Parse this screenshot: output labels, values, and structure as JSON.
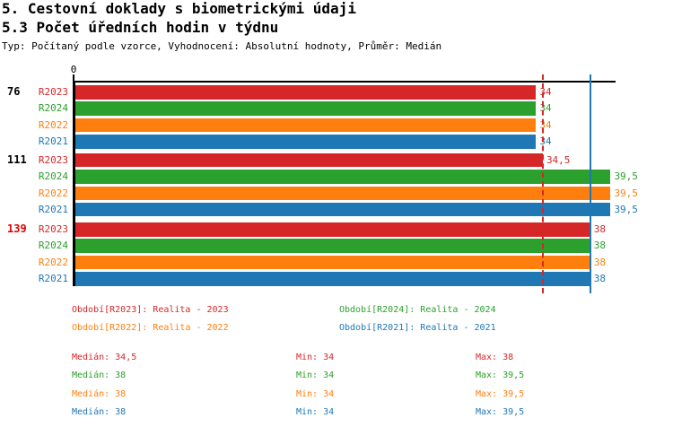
{
  "header": {
    "title": "5. Cestovní doklady s biometrickými údaji",
    "subtitle": "5.3 Počet úředních hodin v týdnu",
    "meta": "Typ: Počítaný podle vzorce, Vyhodnocení: Absolutní hodnoty, Průměr: Medián"
  },
  "colors": {
    "series": {
      "R2023": "#d62728",
      "R2024": "#2ca02c",
      "R2022": "#ff7f0e",
      "R2021": "#1f77b4"
    },
    "axis": "#000000",
    "group_label_default": "#000000",
    "group_label_alert": "#e00000"
  },
  "chart_data": {
    "type": "bar",
    "orientation": "horizontal",
    "value_axis_min": 0,
    "axis_origin_label": "0",
    "series_order": [
      "R2023",
      "R2024",
      "R2022",
      "R2021"
    ],
    "groups": [
      {
        "label": "76",
        "label_color": "#000000",
        "bars": [
          {
            "series": "R2023",
            "value": 34,
            "display": "34"
          },
          {
            "series": "R2024",
            "value": 34,
            "display": "34"
          },
          {
            "series": "R2022",
            "value": 34,
            "display": "34"
          },
          {
            "series": "R2021",
            "value": 34,
            "display": "34"
          }
        ]
      },
      {
        "label": "111",
        "label_color": "#000000",
        "bars": [
          {
            "series": "R2023",
            "value": 34.5,
            "display": "34,5"
          },
          {
            "series": "R2024",
            "value": 39.5,
            "display": "39,5"
          },
          {
            "series": "R2022",
            "value": 39.5,
            "display": "39,5"
          },
          {
            "series": "R2021",
            "value": 39.5,
            "display": "39,5"
          }
        ]
      },
      {
        "label": "139",
        "label_color": "#e00000",
        "bars": [
          {
            "series": "R2023",
            "value": 38,
            "display": "38"
          },
          {
            "series": "R2024",
            "value": 38,
            "display": "38"
          },
          {
            "series": "R2022",
            "value": 38,
            "display": "38"
          },
          {
            "series": "R2021",
            "value": 38,
            "display": "38"
          }
        ]
      }
    ],
    "reference_lines": [
      {
        "name": "median-line-r2023",
        "value": 34.5,
        "color": "#d62728",
        "style": "dashed"
      },
      {
        "name": "median-line-r2021",
        "value": 38,
        "color": "#1f77b4",
        "style": "solid"
      }
    ],
    "stats": [
      {
        "series": "R2023",
        "median": 34.5,
        "min": 34,
        "max": 38
      },
      {
        "series": "R2024",
        "median": 38,
        "min": 34,
        "max": 39.5
      },
      {
        "series": "R2022",
        "median": 38,
        "min": 34,
        "max": 39.5
      },
      {
        "series": "R2021",
        "median": 38,
        "min": 34,
        "max": 39.5
      }
    ]
  },
  "legend": {
    "items": [
      {
        "series": "R2023",
        "label": "Období[R2023]: Realita - 2023"
      },
      {
        "series": "R2024",
        "label": "Období[R2024]: Realita - 2024"
      },
      {
        "series": "R2022",
        "label": "Období[R2022]: Realita - 2022"
      },
      {
        "series": "R2021",
        "label": "Období[R2021]: Realita - 2021"
      }
    ]
  },
  "stats": {
    "rows": [
      {
        "series": "R2023",
        "median_text": "Medián: 34,5",
        "min_text": "Min: 34",
        "max_text": "Max: 38"
      },
      {
        "series": "R2024",
        "median_text": "Medián: 38",
        "min_text": "Min: 34",
        "max_text": "Max: 39,5"
      },
      {
        "series": "R2022",
        "median_text": "Medián: 38",
        "min_text": "Min: 34",
        "max_text": "Max: 39,5"
      },
      {
        "series": "R2021",
        "median_text": "Medián: 38",
        "min_text": "Min: 34",
        "max_text": "Max: 39,5"
      }
    ]
  }
}
